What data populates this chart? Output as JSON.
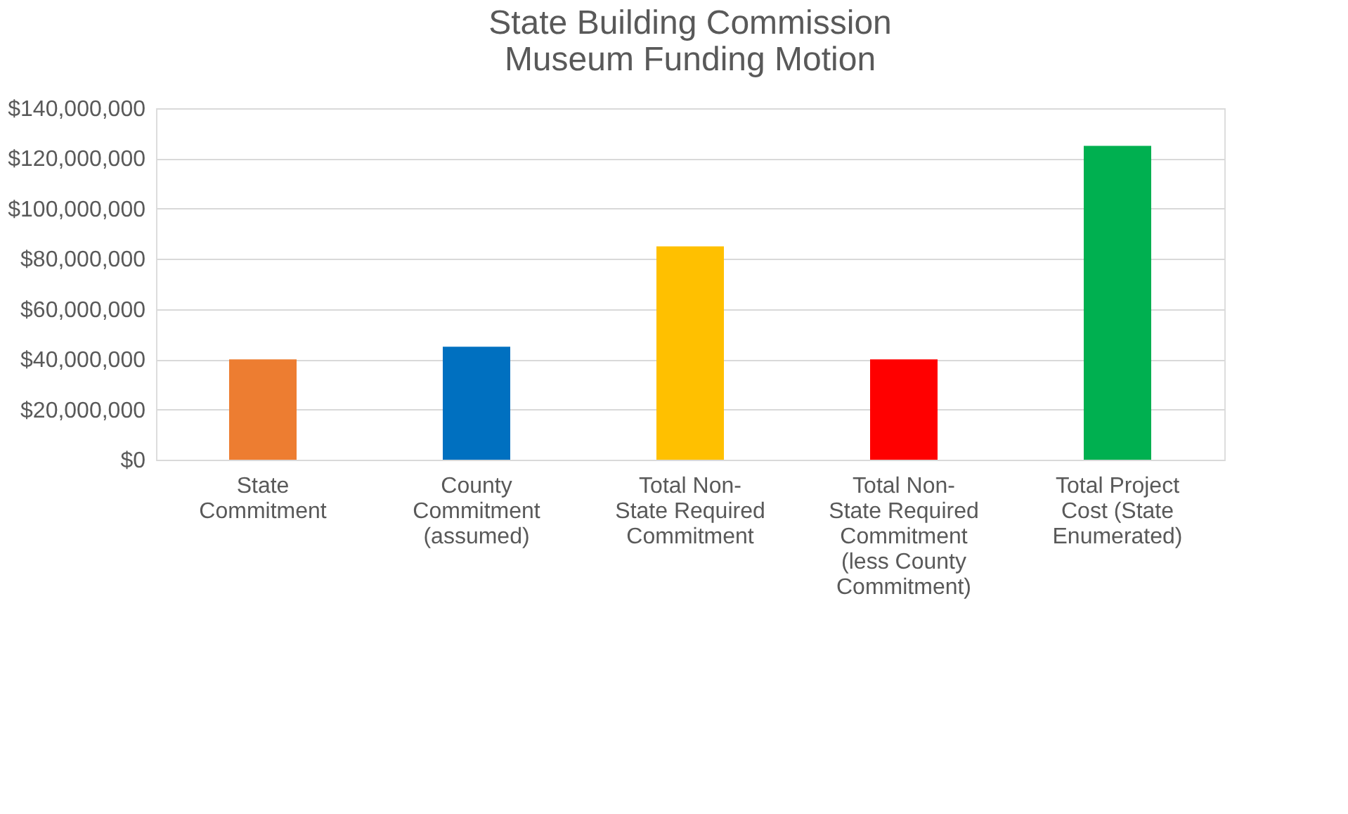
{
  "chart_data": {
    "type": "bar",
    "title": "State Building Commission\nMuseum Funding Motion",
    "categories": [
      "State Commitment",
      "County Commitment (assumed)",
      "Total Non-State Required Commitment",
      "Total Non-State Required Commitment (less County Commitment)",
      "Total Project Cost (State Enumerated)"
    ],
    "values": [
      40000000,
      45000000,
      85000000,
      40000000,
      125000000
    ],
    "colors": [
      "#ed7d31",
      "#0070c0",
      "#ffc000",
      "#ff0000",
      "#00b050"
    ],
    "ylim": [
      0,
      140000000
    ],
    "yticks": [
      {
        "value": 0,
        "label": "$0"
      },
      {
        "value": 20000000,
        "label": "$20,000,000"
      },
      {
        "value": 40000000,
        "label": "$40,000,000"
      },
      {
        "value": 60000000,
        "label": "$60,000,000"
      },
      {
        "value": 80000000,
        "label": "$80,000,000"
      },
      {
        "value": 100000000,
        "label": "$100,000,000"
      },
      {
        "value": 120000000,
        "label": "$120,000,000"
      },
      {
        "value": 140000000,
        "label": "$140,000,000"
      }
    ],
    "grid": "y"
  }
}
